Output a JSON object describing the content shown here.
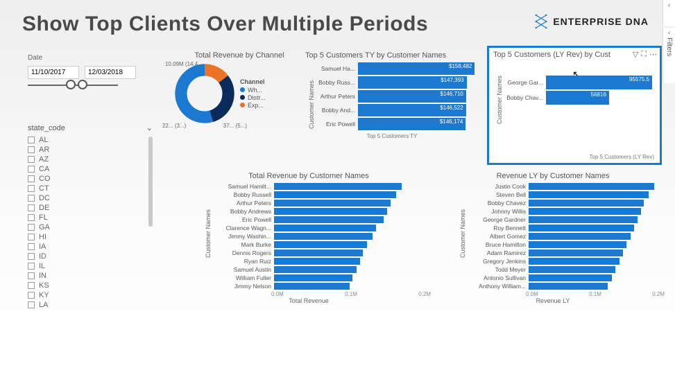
{
  "colors": {
    "primary_blue": "#1b79d0",
    "orange": "#e97428",
    "dark_blue": "#0a2a5c",
    "grid": "#dddddd",
    "text": "#555555"
  },
  "page_title": "Show Top Clients Over Multiple Periods",
  "brand": "ENTERPRISE DNA",
  "side_panes": {
    "filters_label": "Filters"
  },
  "date_slicer": {
    "label": "Date",
    "start": "11/10/2017",
    "end": "12/03/2018",
    "thumbs_pct": [
      42,
      55
    ]
  },
  "state_filter": {
    "label": "state_code",
    "items": [
      "AL",
      "AR",
      "AZ",
      "CA",
      "CO",
      "CT",
      "DC",
      "DE",
      "FL",
      "GA",
      "HI",
      "IA",
      "ID",
      "IL",
      "IN",
      "KS",
      "KY",
      "LA"
    ]
  },
  "donut": {
    "title": "Total Revenue by Channel",
    "legend_title": "Channel",
    "legend": [
      {
        "label": "Wh...",
        "color": "#1b79d0"
      },
      {
        "label": "Distr...",
        "color": "#0a2a5c"
      },
      {
        "label": "Exp...",
        "color": "#e97428"
      }
    ],
    "slices": [
      {
        "label": "10.09M (14.4...",
        "value": 14.4,
        "color": "#e97428"
      },
      {
        "label": "22... (3...)",
        "value": 31,
        "color": "#0a2a5c"
      },
      {
        "label": "37... (5...)",
        "value": 54.6,
        "color": "#1b79d0"
      }
    ]
  },
  "top5_ty": {
    "title": "Top 5 Customers TY by Customer Names",
    "y_axis": "Customer Names",
    "footer": "Top 5 Customers TY",
    "max": 160000,
    "rows": [
      {
        "name": "Samuel Ha...",
        "label": "$158,482",
        "value": 158482
      },
      {
        "name": "Bobby Russ...",
        "label": "$147,393",
        "value": 147393
      },
      {
        "name": "Arthur Peters",
        "label": "$146,710",
        "value": 146710
      },
      {
        "name": "Bobby And...",
        "label": "$146,522",
        "value": 146522
      },
      {
        "name": "Eric Powell",
        "label": "$146,174",
        "value": 146174
      }
    ]
  },
  "top5_ly": {
    "title": "Top 5 Customers (LY Rev) by Cust",
    "y_axis": "Customer Names",
    "footer": "Top 5 Customers (LY Rev)",
    "max": 100000,
    "rows": [
      {
        "name": "George Gar...",
        "label": "95575.5",
        "value": 95575.5
      },
      {
        "name": "Bobby Chav...",
        "label": "56816",
        "value": 56816
      }
    ]
  },
  "rev_ty": {
    "title": "Total Revenue by Customer Names",
    "y_axis": "Customer Names",
    "x_axis": "Total Revenue",
    "ticks": [
      "0.0M",
      "0.1M",
      "0.2M"
    ],
    "max": 200000,
    "rows": [
      {
        "name": "Samuel Hamilt...",
        "value": 175000
      },
      {
        "name": "Bobby Russell",
        "value": 168000
      },
      {
        "name": "Arthur Peters",
        "value": 160000
      },
      {
        "name": "Bobby Andrews",
        "value": 155000
      },
      {
        "name": "Eric Powell",
        "value": 150000
      },
      {
        "name": "Clarence Wagn...",
        "value": 140000
      },
      {
        "name": "Jimmy Washin...",
        "value": 135000
      },
      {
        "name": "Mark Burke",
        "value": 128000
      },
      {
        "name": "Dennis Rogers",
        "value": 122000
      },
      {
        "name": "Ryan Ruiz",
        "value": 118000
      },
      {
        "name": "Samuel Austin",
        "value": 113000
      },
      {
        "name": "William Fuller",
        "value": 108000
      },
      {
        "name": "Jimmy Nelson",
        "value": 104000
      }
    ]
  },
  "rev_ly": {
    "title": "Revenue LY by Customer Names",
    "y_axis": "Customer Names",
    "x_axis": "Revenue LY",
    "ticks": [
      "0.0M",
      "0.1M",
      "0.2M"
    ],
    "max": 200000,
    "rows": [
      {
        "name": "Justin Cook",
        "value": 190000
      },
      {
        "name": "Steven Bell",
        "value": 182000
      },
      {
        "name": "Bobby Chavez",
        "value": 175000
      },
      {
        "name": "Johnny Willis",
        "value": 170000
      },
      {
        "name": "George Gardner",
        "value": 165000
      },
      {
        "name": "Roy Bennett",
        "value": 160000
      },
      {
        "name": "Albert Gomez",
        "value": 155000
      },
      {
        "name": "Bruce Hamilton",
        "value": 148000
      },
      {
        "name": "Adam Ramirez",
        "value": 143000
      },
      {
        "name": "Gregory Jenkins",
        "value": 138000
      },
      {
        "name": "Todd Meyer",
        "value": 132000
      },
      {
        "name": "Antonio Sullivan",
        "value": 126000
      },
      {
        "name": "Anthony William...",
        "value": 120000
      }
    ]
  }
}
